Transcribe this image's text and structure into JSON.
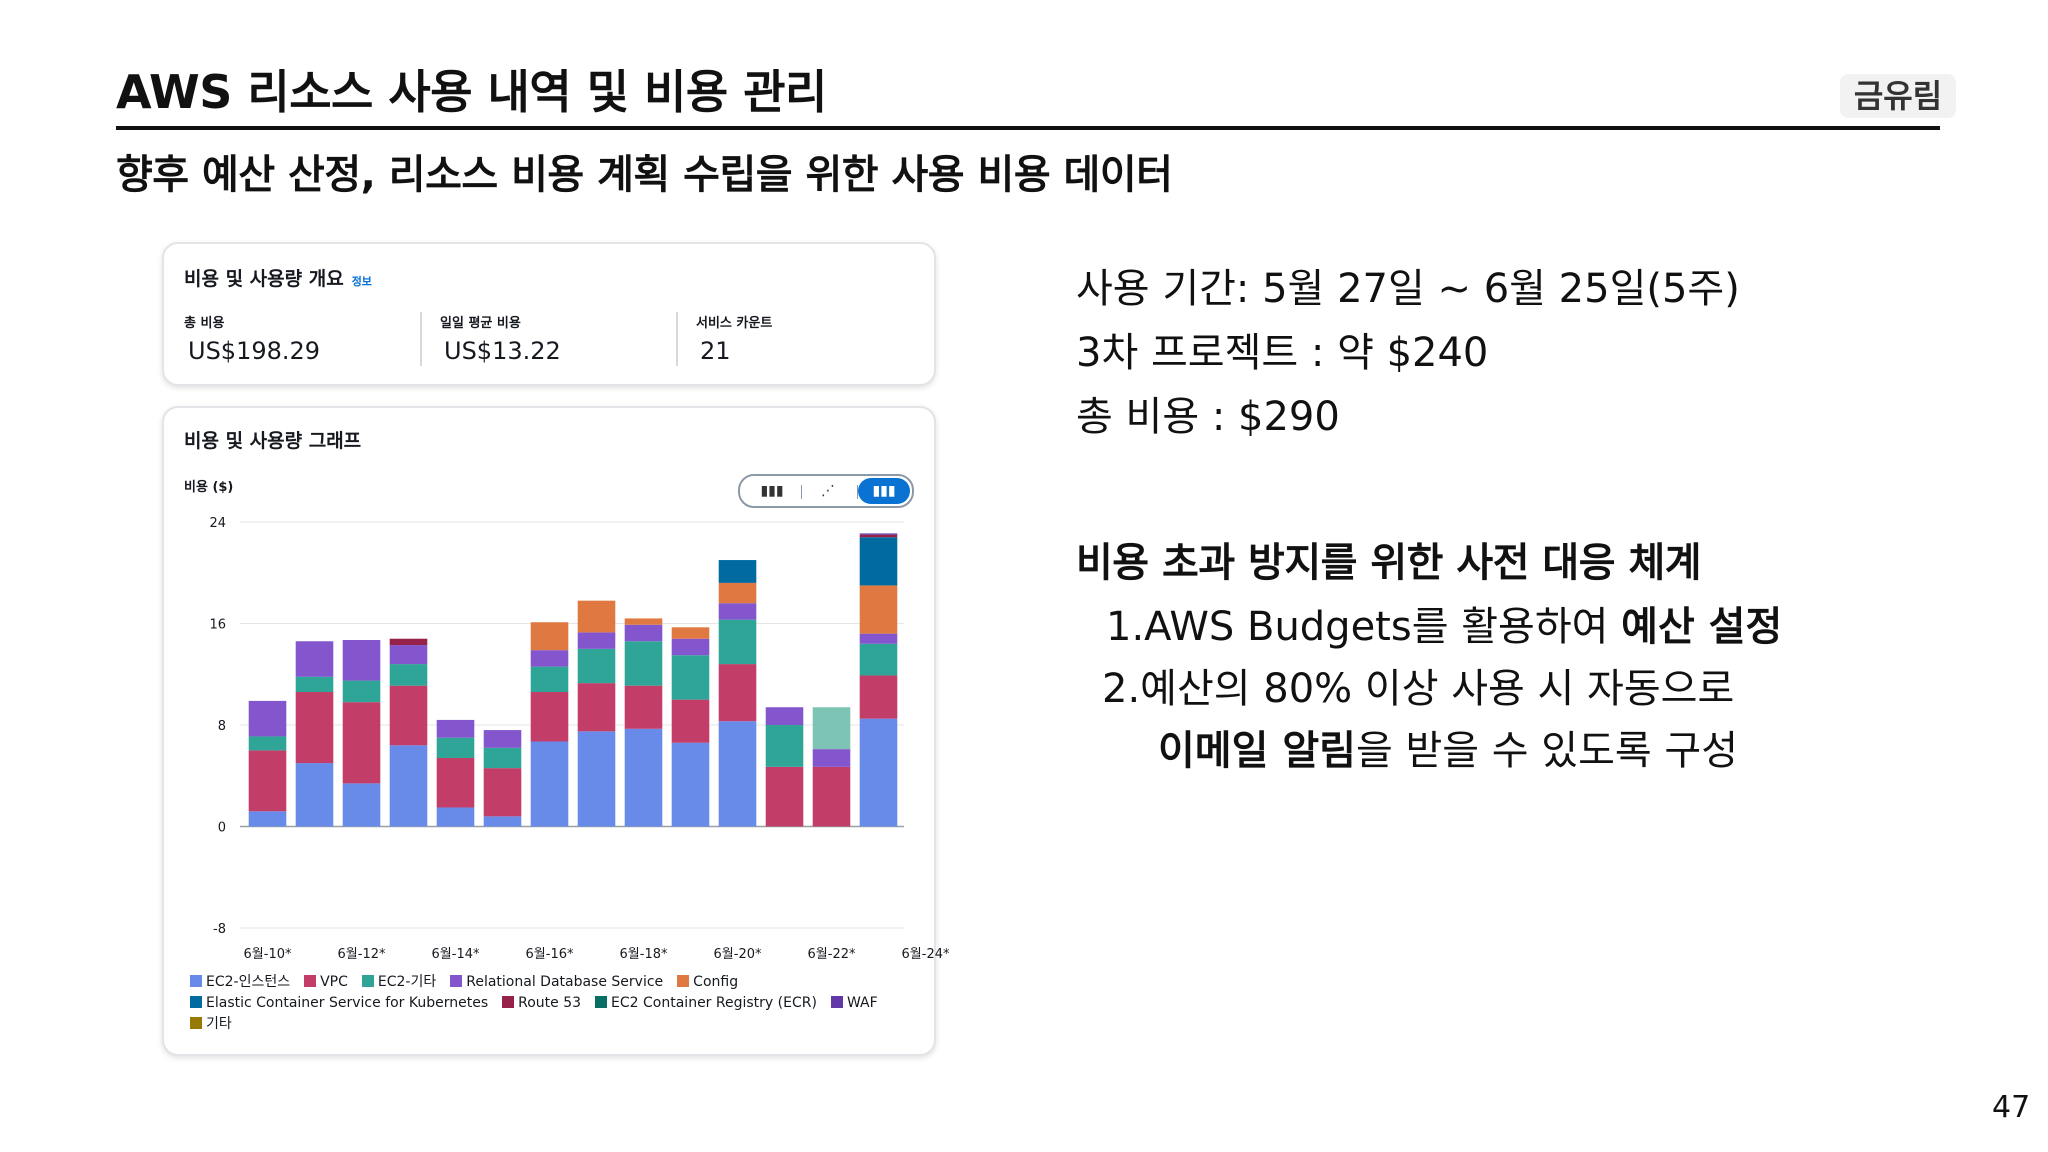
{
  "slide": {
    "title": "AWS 리소스 사용 내역 및 비용 관리",
    "author": "금유림",
    "subtitle": "향후 예산 산정, 리소스 비용 계획 수립을 위한 사용 비용 데이터",
    "page_number": "47"
  },
  "overview": {
    "heading": "비용 및 사용량 개요",
    "info_link": "정보",
    "metrics": [
      {
        "label": "총 비용",
        "value": "US$198.29"
      },
      {
        "label": "일일 평균 비용",
        "value": "US$13.22"
      },
      {
        "label": "서비스 카운트",
        "value": "21"
      }
    ]
  },
  "graph": {
    "heading": "비용 및 사용량 그래프",
    "y_axis_title": "비용 ($)",
    "toggle": {
      "options": [
        {
          "icon": "bar-chart-icon",
          "glyph": "▮▮▮"
        },
        {
          "icon": "line-chart-icon",
          "glyph": "⋰"
        },
        {
          "icon": "stacked-bar-chart-icon",
          "glyph": "▮▮▮"
        }
      ],
      "active_index": 2
    }
  },
  "chart_data": {
    "type": "bar",
    "stacked": true,
    "ylim": [
      -8,
      24
    ],
    "yticks": [
      24,
      16,
      8,
      0,
      -8
    ],
    "x_tick_labels": [
      "6월-10*",
      "6월-12*",
      "6월-14*",
      "6월-16*",
      "6월-18*",
      "6월-20*",
      "6월-22*",
      "6월-24*"
    ],
    "grid": true,
    "legend_position": "bottom",
    "series": [
      {
        "name": "EC2-인스턴스",
        "color": "#688ae8",
        "values": [
          1.2,
          5,
          3.4,
          6.4,
          1.5,
          0.8,
          6.7,
          7.5,
          7.7,
          6.6,
          8.3,
          0,
          0,
          8.5
        ]
      },
      {
        "name": "VPC",
        "color": "#c33d69",
        "values": [
          4.8,
          5.6,
          6.4,
          4.7,
          3.9,
          3.8,
          3.9,
          3.8,
          3.4,
          3.4,
          4.5,
          4.7,
          4.7,
          3.4
        ]
      },
      {
        "name": "EC2-기타",
        "color": "#2ea597",
        "values": [
          1.1,
          1.2,
          1.7,
          1.7,
          1.6,
          1.6,
          2,
          2.7,
          3.5,
          3.5,
          3.5,
          3.3,
          0,
          2.5
        ]
      },
      {
        "name": "Relational Database Service",
        "color": "#8456ce",
        "values": [
          2.8,
          2.8,
          3.2,
          1.5,
          1.4,
          1.4,
          1.3,
          1.3,
          1.3,
          1.3,
          1.3,
          1.4,
          1.4,
          0.8
        ]
      },
      {
        "name": "Config",
        "color": "#e07941",
        "values": [
          0,
          0,
          0,
          0,
          0,
          0,
          2.2,
          2.5,
          0.5,
          0.9,
          1.6,
          0,
          0,
          3.8
        ]
      },
      {
        "name": "Elastic Container Service for Kubernetes",
        "color": "#016aa0",
        "values": [
          0,
          0,
          0,
          0,
          0,
          0,
          0,
          0,
          0,
          0,
          1.8,
          0,
          0,
          3.8
        ]
      },
      {
        "name": "Route 53",
        "color": "#962249",
        "values": [
          0,
          0,
          0,
          0.5,
          0,
          0,
          0,
          0,
          0,
          0,
          0,
          0,
          0,
          0.2
        ]
      },
      {
        "name": "EC2 Container Registry (ECR)",
        "color": "#096f64",
        "values": [
          0,
          0,
          0,
          0,
          0,
          0,
          0,
          0,
          0,
          0,
          0,
          0,
          0,
          0
        ]
      },
      {
        "name": "WAF",
        "color": "#6237a7",
        "values": [
          0,
          0,
          0,
          0,
          0,
          0,
          0,
          0,
          0,
          0,
          0,
          0,
          0,
          0.1
        ]
      },
      {
        "name": "기타",
        "color": "#967a04",
        "values": [
          0,
          0,
          0,
          0,
          0,
          0,
          0,
          0,
          0,
          0,
          0,
          0,
          0,
          0
        ]
      },
      {
        "name": "",
        "color": "#7ec4b4",
        "values": [
          0,
          0,
          0,
          0,
          0,
          0,
          0,
          0,
          0,
          0,
          0,
          0,
          3.3,
          0
        ]
      }
    ]
  },
  "usage": {
    "period": "사용 기간: 5월 27일 ~ 6월 25일(5주)",
    "project3": "3차 프로젝트 : 약 $240",
    "total": "총 비용 : $290"
  },
  "prevention": {
    "title": "비용 초과 방지를 위한 사전 대응 체계",
    "item1_prefix": "1.AWS Budgets를 활용하여 ",
    "item1_bold": "예산 설정",
    "item2_line1": "2.예산의 80% 이상 사용 시 자동으로",
    "item2_bold": "이메일 알림",
    "item2_rest": "을 받을 수 있도록 구성"
  }
}
